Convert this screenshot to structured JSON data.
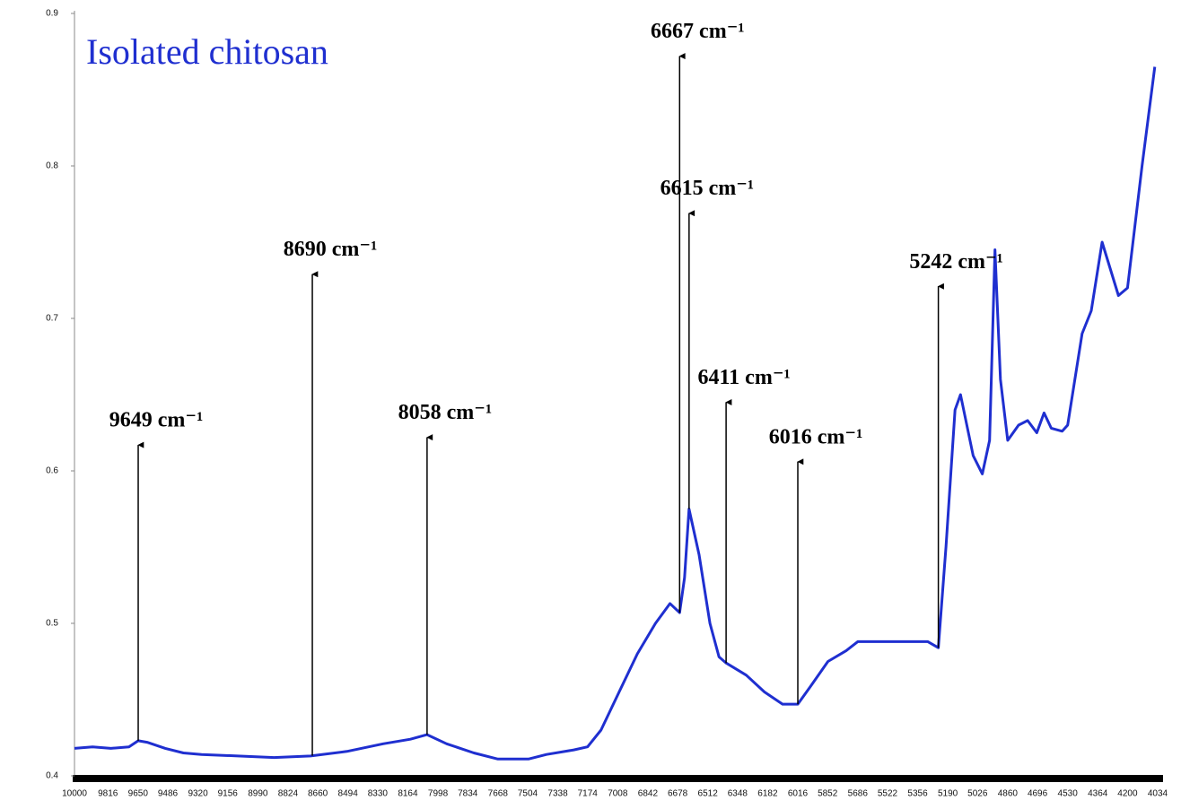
{
  "chart_data": {
    "type": "line",
    "title": "Isolated chitosan",
    "color": "#1f2fd0",
    "x": [
      10000,
      9900,
      9800,
      9700,
      9649,
      9600,
      9500,
      9400,
      9300,
      9100,
      8900,
      8700,
      8500,
      8300,
      8150,
      8058,
      7950,
      7800,
      7668,
      7500,
      7400,
      7250,
      7174,
      7100,
      7000,
      6900,
      6800,
      6720,
      6667,
      6640,
      6615,
      6560,
      6500,
      6450,
      6411,
      6300,
      6200,
      6100,
      6016,
      5950,
      5850,
      5750,
      5686,
      5500,
      5400,
      5300,
      5242,
      5200,
      5150,
      5120,
      5050,
      5000,
      4960,
      4930,
      4900,
      4860,
      4800,
      4750,
      4700,
      4660,
      4620,
      4560,
      4530,
      4450,
      4400,
      4340,
      4250,
      4200,
      4120,
      4050
    ],
    "values": [
      0.418,
      0.419,
      0.418,
      0.419,
      0.423,
      0.422,
      0.418,
      0.415,
      0.414,
      0.413,
      0.412,
      0.413,
      0.416,
      0.421,
      0.424,
      0.427,
      0.421,
      0.415,
      0.411,
      0.411,
      0.414,
      0.417,
      0.419,
      0.43,
      0.455,
      0.48,
      0.5,
      0.513,
      0.507,
      0.53,
      0.575,
      0.545,
      0.5,
      0.478,
      0.474,
      0.466,
      0.455,
      0.447,
      0.447,
      0.458,
      0.475,
      0.482,
      0.488,
      0.488,
      0.488,
      0.488,
      0.484,
      0.55,
      0.64,
      0.65,
      0.61,
      0.598,
      0.62,
      0.745,
      0.66,
      0.62,
      0.63,
      0.633,
      0.625,
      0.638,
      0.628,
      0.626,
      0.63,
      0.69,
      0.705,
      0.75,
      0.715,
      0.72,
      0.8,
      0.865
    ],
    "xlim": [
      10000,
      4034
    ],
    "ylim": [
      0.4,
      0.9
    ],
    "xticks": [
      10000,
      9816,
      9650,
      9486,
      9320,
      9156,
      8990,
      8824,
      8660,
      8494,
      8330,
      8164,
      7998,
      7834,
      7668,
      7504,
      7338,
      7174,
      7008,
      6842,
      6678,
      6512,
      6348,
      6182,
      6016,
      5852,
      5686,
      5522,
      5356,
      5190,
      5026,
      4860,
      4696,
      4530,
      4364,
      4200,
      4034
    ],
    "yticks": [
      0.4,
      0.5,
      0.6,
      0.7,
      0.8,
      0.9
    ],
    "annotations": [
      {
        "text": "9649 cm⁻¹",
        "x": 9649,
        "y": 0.617
      },
      {
        "text": "8690 cm⁻¹",
        "x": 8690,
        "y": 0.729
      },
      {
        "text": "8058 cm⁻¹",
        "x": 8058,
        "y": 0.622
      },
      {
        "text": "6667 cm⁻¹",
        "x": 6667,
        "y": 0.872
      },
      {
        "text": "6615 cm⁻¹",
        "x": 6615,
        "y": 0.769
      },
      {
        "text": "6411 cm⁻¹",
        "x": 6411,
        "y": 0.645
      },
      {
        "text": "6016 cm⁻¹",
        "x": 6016,
        "y": 0.606
      },
      {
        "text": "5242 cm⁻¹",
        "x": 5242,
        "y": 0.721
      }
    ]
  }
}
